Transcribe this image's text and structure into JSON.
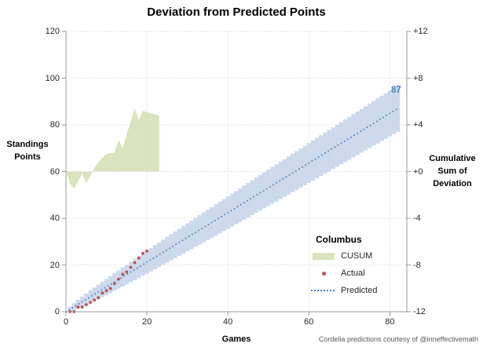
{
  "title": "Deviation from Predicted Points",
  "credit": "Cordelia predictions courtesy of @inneffectivemath",
  "axes": {
    "left": {
      "title_lines": [
        "Standings",
        "Points"
      ],
      "tick_values": [
        120,
        100,
        80,
        60,
        40,
        20,
        0
      ]
    },
    "right": {
      "title_lines": [
        "Cumulative",
        "Sum of",
        "Deviation"
      ],
      "tick_values": [
        12,
        8,
        4,
        0,
        -4,
        -8,
        -12
      ],
      "tick_labels": [
        "+12",
        "+8",
        "+4",
        "+0",
        "-4",
        "-8",
        "-12"
      ]
    },
    "x": {
      "title": "Games",
      "tick_values": [
        0,
        20,
        40,
        60,
        80
      ]
    }
  },
  "legend": {
    "title": "Columbus",
    "items": [
      {
        "label": "CUSUM",
        "swatch": "area"
      },
      {
        "label": "Actual",
        "swatch": "dot"
      },
      {
        "label": "Predicted",
        "swatch": "dotted"
      }
    ]
  },
  "colors": {
    "cusum_fill": "#d9e3bd",
    "band_fill": "#ccd9ec",
    "actual": "#c0504d",
    "predicted": "#4a7ebb",
    "grid": "#d4d4d4",
    "axis": "#9a9a9a",
    "credit_text": "#595959"
  },
  "chart_data": {
    "type": "combo",
    "title": "Deviation from Predicted Points",
    "xlabel": "Games",
    "ylabel_left": "Standings Points",
    "ylabel_right": "Cumulative Sum of Deviation",
    "xlim": [
      0,
      84.2
    ],
    "ylim_left": [
      0,
      120
    ],
    "ylim_right": [
      -12,
      12
    ],
    "grid": true,
    "legend_position": "inside-lower-right",
    "series": [
      {
        "name": "CUSUM",
        "type": "area",
        "axis": "right",
        "x": [
          0,
          1,
          2,
          3,
          4,
          5,
          6,
          7,
          8,
          9,
          10,
          11,
          12,
          13,
          14,
          15,
          16,
          17,
          18,
          19,
          20,
          21,
          22,
          23
        ],
        "values": [
          0,
          -1.0,
          -1.5,
          -0.8,
          -0.2,
          -1.0,
          -0.4,
          0.3,
          0.8,
          1.2,
          1.5,
          1.6,
          1.6,
          2.7,
          2.0,
          3.2,
          4.3,
          5.4,
          4.4,
          5.2,
          5.1,
          5.0,
          4.9,
          4.8
        ]
      },
      {
        "name": "Actual",
        "type": "scatter",
        "axis": "left",
        "x": [
          1,
          2,
          3,
          4,
          5,
          6,
          7,
          8,
          9,
          10,
          11,
          12,
          13,
          14,
          15,
          16,
          17,
          18,
          19,
          20
        ],
        "values": [
          0,
          0,
          2,
          2,
          3,
          4,
          5,
          6,
          8,
          9,
          10,
          12,
          14,
          16,
          17,
          19,
          21,
          23,
          25,
          26
        ]
      },
      {
        "name": "Predicted",
        "type": "dotted-line",
        "axis": "left",
        "x": [
          0,
          82
        ],
        "values": [
          0,
          87
        ],
        "end_label": "87"
      },
      {
        "name": "Prediction band",
        "type": "band",
        "axis": "left",
        "center": "Predicted",
        "halfwidth_coef": 1.1,
        "halfwidth_rule": "1.1*sqrt(games)",
        "x_range": [
          1,
          82
        ]
      }
    ]
  }
}
